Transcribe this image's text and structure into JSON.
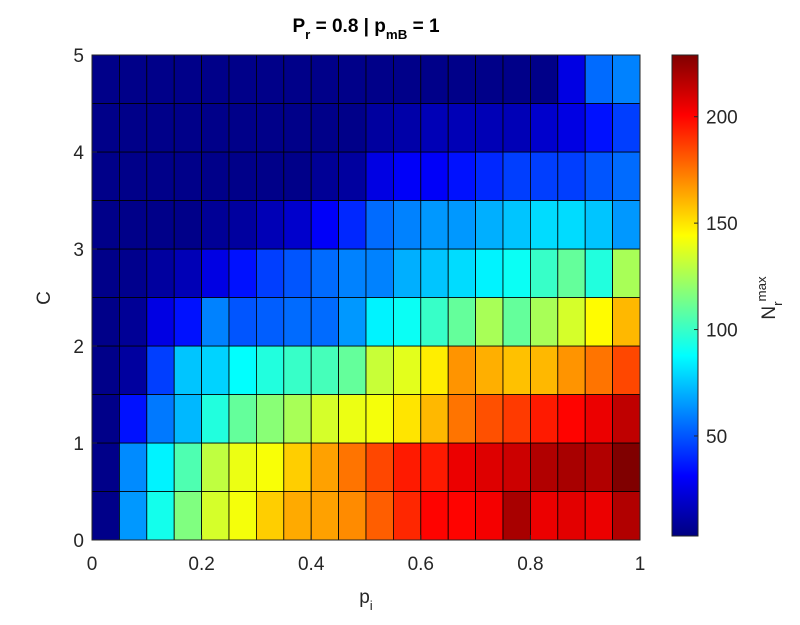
{
  "chart_data": {
    "type": "heatmap",
    "title": {
      "parts": [
        {
          "text": "P"
        },
        {
          "text": "r",
          "sub": true
        },
        {
          "text": " = 0.8 | p"
        },
        {
          "text": "mB",
          "sub": true
        },
        {
          "text": " = 1"
        }
      ]
    },
    "x_label": {
      "parts": [
        {
          "text": "p"
        },
        {
          "text": "i",
          "sub": true
        }
      ]
    },
    "y_label": {
      "parts": [
        {
          "text": "C"
        }
      ]
    },
    "colorbar_label": {
      "parts": [
        {
          "text": "N"
        },
        {
          "text": "r",
          "sub": true
        },
        {
          "text": "max",
          "sup": true
        }
      ]
    },
    "x_bins": [
      0,
      0.05,
      0.1,
      0.15,
      0.2,
      0.25,
      0.3,
      0.35,
      0.4,
      0.45,
      0.5,
      0.55,
      0.6,
      0.65,
      0.7,
      0.75,
      0.8,
      0.85,
      0.9,
      0.95,
      1
    ],
    "y_bins": [
      0,
      0.5,
      1,
      1.5,
      2,
      2.5,
      3,
      3.5,
      4,
      4.5,
      5
    ],
    "values": [
      [
        5,
        65,
        92,
        116,
        135,
        142,
        155,
        163,
        165,
        170,
        180,
        192,
        200,
        200,
        203,
        220,
        205,
        207,
        205,
        218
      ],
      [
        5,
        62,
        85,
        105,
        130,
        140,
        143,
        155,
        165,
        175,
        185,
        195,
        195,
        205,
        208,
        212,
        218,
        220,
        218,
        229
      ],
      [
        5,
        35,
        58,
        72,
        95,
        110,
        118,
        125,
        135,
        140,
        142,
        150,
        160,
        175,
        183,
        188,
        195,
        200,
        205,
        215
      ],
      [
        5,
        10,
        45,
        75,
        78,
        88,
        95,
        100,
        103,
        110,
        132,
        138,
        148,
        168,
        162,
        158,
        160,
        168,
        175,
        185
      ],
      [
        5,
        8,
        25,
        35,
        60,
        50,
        52,
        55,
        55,
        65,
        85,
        90,
        100,
        110,
        125,
        110,
        125,
        135,
        145,
        160
      ],
      [
        5,
        6,
        10,
        15,
        25,
        35,
        45,
        50,
        55,
        60,
        60,
        70,
        75,
        80,
        85,
        90,
        100,
        110,
        95,
        125
      ],
      [
        5,
        5,
        5,
        5,
        8,
        10,
        15,
        20,
        30,
        40,
        55,
        60,
        65,
        65,
        70,
        75,
        80,
        80,
        75,
        65
      ],
      [
        5,
        5,
        5,
        5,
        5,
        5,
        5,
        5,
        8,
        10,
        25,
        30,
        30,
        35,
        40,
        45,
        45,
        45,
        50,
        55
      ],
      [
        5,
        5,
        5,
        5,
        5,
        5,
        5,
        5,
        5,
        5,
        10,
        12,
        15,
        15,
        15,
        15,
        20,
        25,
        35,
        45
      ],
      [
        5,
        5,
        5,
        5,
        5,
        5,
        5,
        5,
        5,
        5,
        5,
        5,
        5,
        5,
        5,
        5,
        5,
        25,
        55,
        60
      ]
    ],
    "xlim": [
      0,
      1
    ],
    "ylim": [
      0,
      5
    ],
    "xticks": [
      0,
      0.2,
      0.4,
      0.6,
      0.8,
      1
    ],
    "yticks": [
      0,
      1,
      2,
      3,
      4,
      5
    ],
    "colormap": "jet",
    "clim": [
      3,
      229
    ],
    "colorbar_ticks": [
      50,
      100,
      150,
      200
    ]
  }
}
